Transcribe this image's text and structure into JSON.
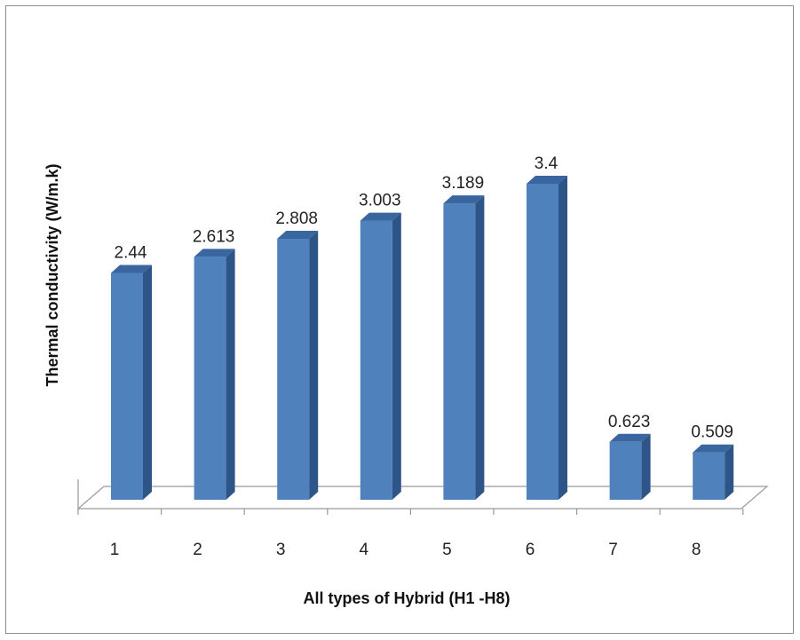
{
  "chart_data": {
    "type": "bar",
    "categories": [
      "1",
      "2",
      "3",
      "4",
      "5",
      "6",
      "7",
      "8"
    ],
    "values": [
      2.44,
      2.613,
      2.808,
      3.003,
      3.189,
      3.4,
      0.623,
      0.509
    ],
    "value_labels": [
      "2.44",
      "2.613",
      "2.808",
      "3.003",
      "3.189",
      "3.4",
      "0.623",
      "0.509"
    ],
    "xlabel": "All types of Hybrid (H1 -H8)",
    "ylabel": "Thermal conductivity  (W/m.k)",
    "ylim": [
      0,
      3.6
    ],
    "grid": false,
    "legend": "none",
    "bar_color": "#4F81BD",
    "bar_side_color": "#2E5588",
    "bar_top_color": "#3A66A0"
  }
}
